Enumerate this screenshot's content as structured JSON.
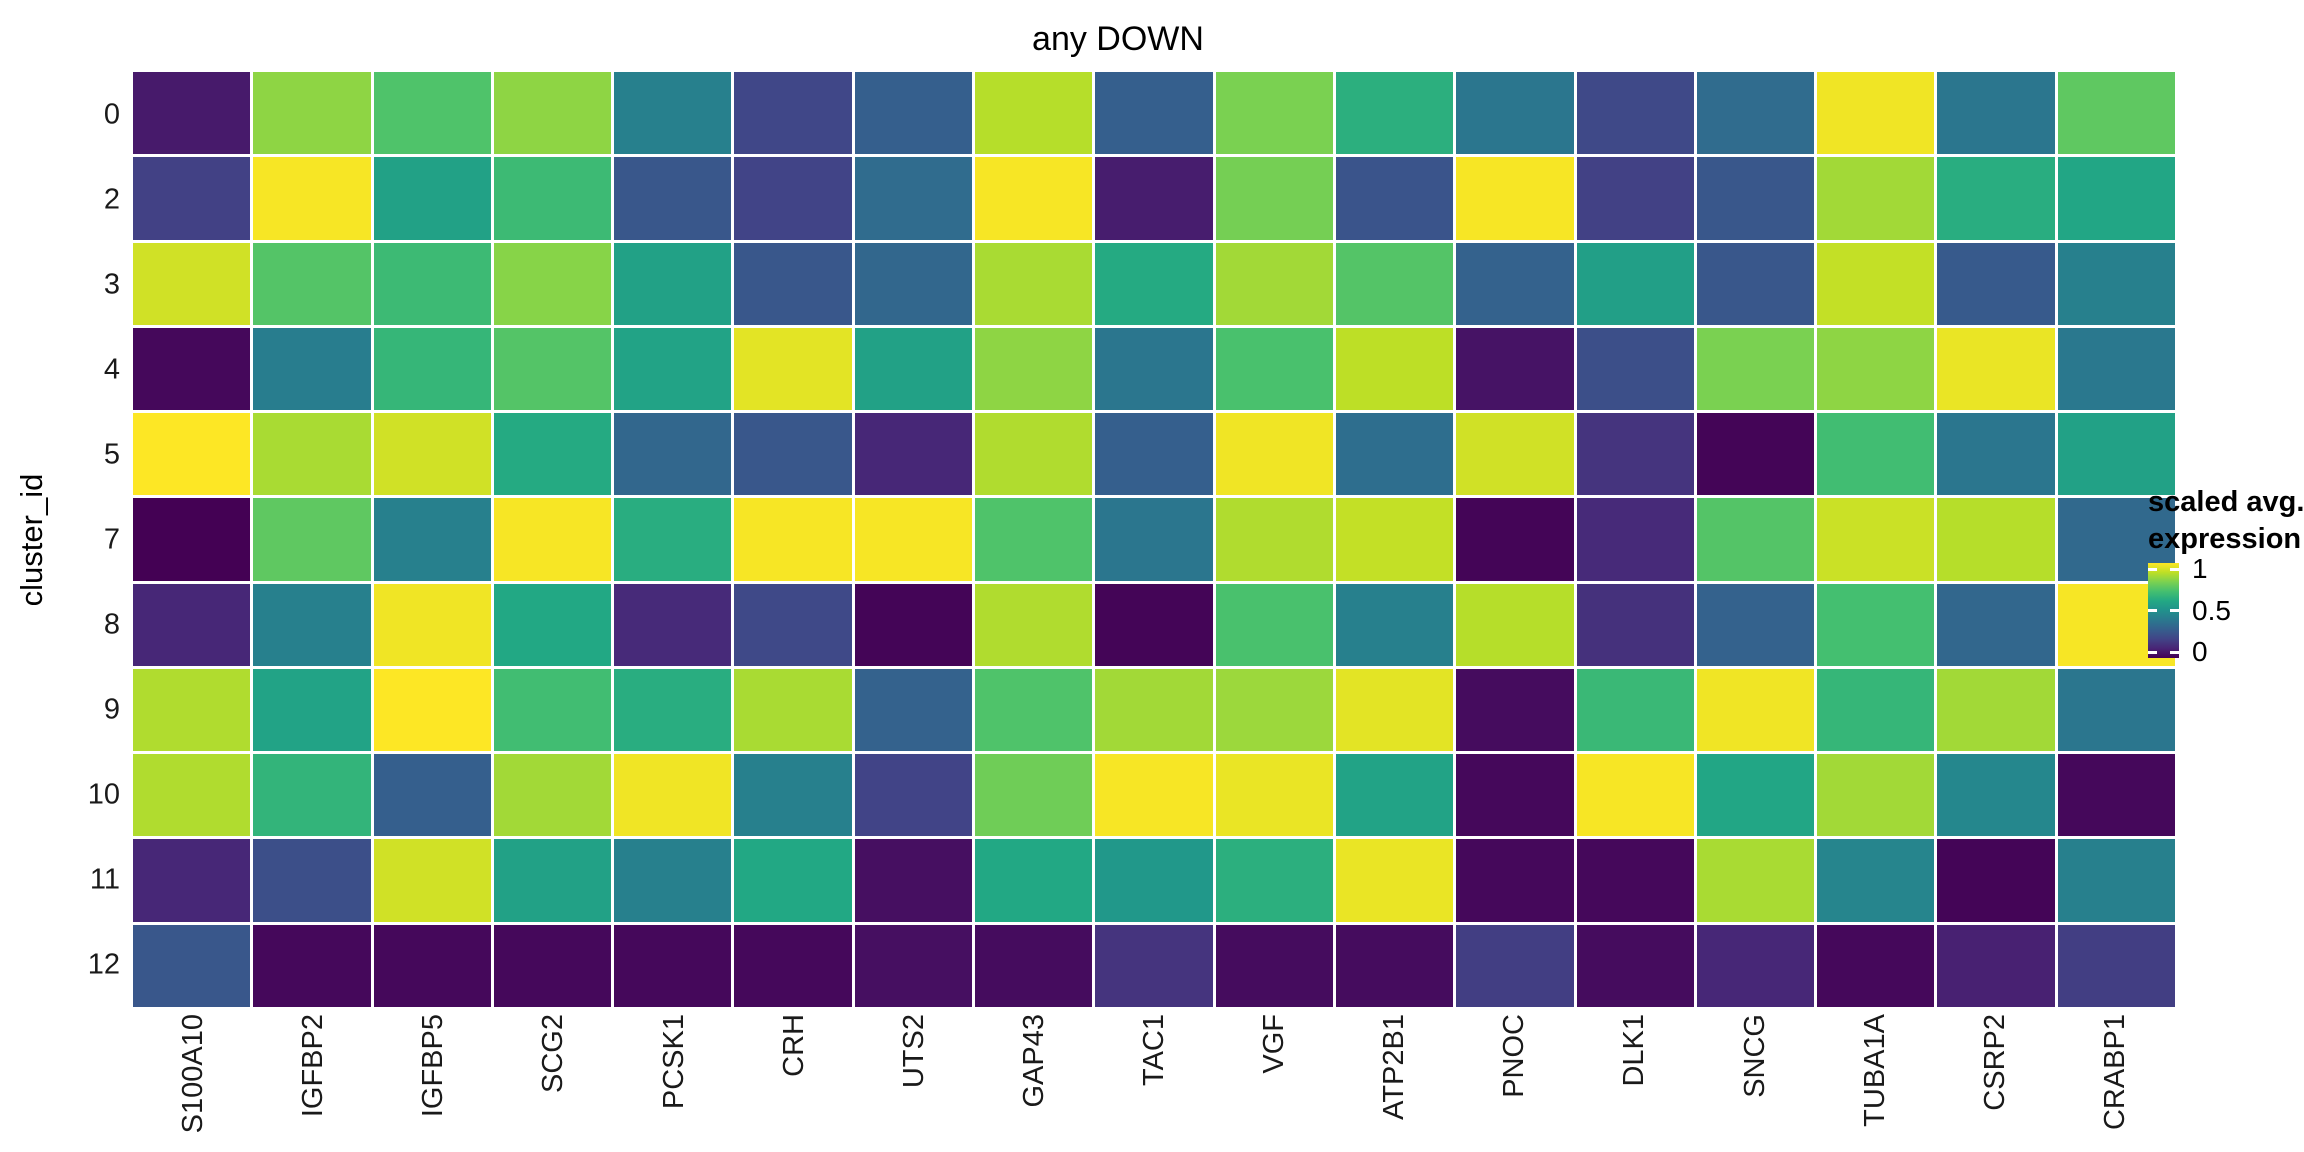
{
  "figure": {
    "title": "any DOWN",
    "y_axis_title": "cluster_id",
    "legend": {
      "title_line1": "scaled avg.",
      "title_line2": "expression",
      "tick_labels": [
        "1",
        "0.5",
        "0"
      ],
      "tick_values": [
        1,
        0.5,
        0
      ]
    },
    "colors": {
      "background": "#ffffff",
      "tick_text": "#1a1a1a",
      "title_text": "#000000",
      "viridis_stops": [
        "#440154",
        "#482475",
        "#414487",
        "#355f8d",
        "#2a788e",
        "#21918c",
        "#22a884",
        "#44bf70",
        "#7ad151",
        "#bddf26",
        "#fde725"
      ]
    }
  },
  "chart_data": {
    "type": "heatmap",
    "title": "any DOWN",
    "xlabel": "",
    "ylabel": "cluster_id",
    "legend_title": "scaled avg. expression",
    "colormap": "viridis",
    "value_range": [
      0,
      1
    ],
    "grid": false,
    "legend_position": "right",
    "columns": [
      "S100A10",
      "IGFBP2",
      "IGFBP5",
      "SCG2",
      "PCSK1",
      "CRH",
      "UTS2",
      "GAP43",
      "TAC1",
      "VGF",
      "ATP2B1",
      "PNOC",
      "DLK1",
      "SNCG",
      "TUBA1A",
      "CSRP2",
      "CRABP1"
    ],
    "rows": [
      "0",
      "2",
      "3",
      "4",
      "5",
      "7",
      "8",
      "9",
      "10",
      "11",
      "12"
    ],
    "values": [
      [
        0.07,
        0.83,
        0.72,
        0.83,
        0.43,
        0.21,
        0.3,
        0.89,
        0.3,
        0.8,
        0.63,
        0.39,
        0.22,
        0.35,
        0.98,
        0.39,
        0.75
      ],
      [
        0.19,
        0.99,
        0.57,
        0.68,
        0.27,
        0.2,
        0.35,
        0.99,
        0.08,
        0.79,
        0.26,
        0.99,
        0.19,
        0.27,
        0.86,
        0.62,
        0.59
      ],
      [
        0.93,
        0.73,
        0.68,
        0.82,
        0.57,
        0.27,
        0.33,
        0.87,
        0.61,
        0.86,
        0.73,
        0.31,
        0.56,
        0.27,
        0.91,
        0.28,
        0.43
      ],
      [
        0.02,
        0.42,
        0.66,
        0.73,
        0.58,
        0.96,
        0.57,
        0.83,
        0.39,
        0.71,
        0.9,
        0.05,
        0.24,
        0.8,
        0.83,
        0.97,
        0.4
      ],
      [
        1.0,
        0.87,
        0.93,
        0.61,
        0.33,
        0.27,
        0.11,
        0.88,
        0.3,
        0.98,
        0.36,
        0.93,
        0.15,
        0.01,
        0.69,
        0.39,
        0.57
      ],
      [
        0.0,
        0.75,
        0.43,
        0.99,
        0.62,
        0.99,
        0.99,
        0.72,
        0.39,
        0.88,
        0.91,
        0.01,
        0.12,
        0.73,
        0.92,
        0.89,
        0.34
      ],
      [
        0.11,
        0.43,
        0.98,
        0.6,
        0.12,
        0.22,
        0.01,
        0.88,
        0.01,
        0.71,
        0.43,
        0.89,
        0.14,
        0.31,
        0.7,
        0.33,
        0.99
      ],
      [
        0.88,
        0.58,
        1.0,
        0.69,
        0.62,
        0.87,
        0.31,
        0.72,
        0.86,
        0.85,
        0.96,
        0.03,
        0.67,
        0.98,
        0.66,
        0.86,
        0.39
      ],
      [
        0.88,
        0.65,
        0.3,
        0.86,
        0.98,
        0.43,
        0.2,
        0.78,
        0.99,
        0.97,
        0.58,
        0.02,
        0.99,
        0.59,
        0.86,
        0.46,
        0.02
      ],
      [
        0.11,
        0.24,
        0.93,
        0.57,
        0.43,
        0.6,
        0.04,
        0.6,
        0.53,
        0.63,
        0.97,
        0.02,
        0.02,
        0.87,
        0.45,
        0.01,
        0.43
      ],
      [
        0.27,
        0.02,
        0.02,
        0.02,
        0.02,
        0.02,
        0.04,
        0.03,
        0.15,
        0.03,
        0.03,
        0.18,
        0.03,
        0.11,
        0.02,
        0.09,
        0.18
      ]
    ]
  }
}
